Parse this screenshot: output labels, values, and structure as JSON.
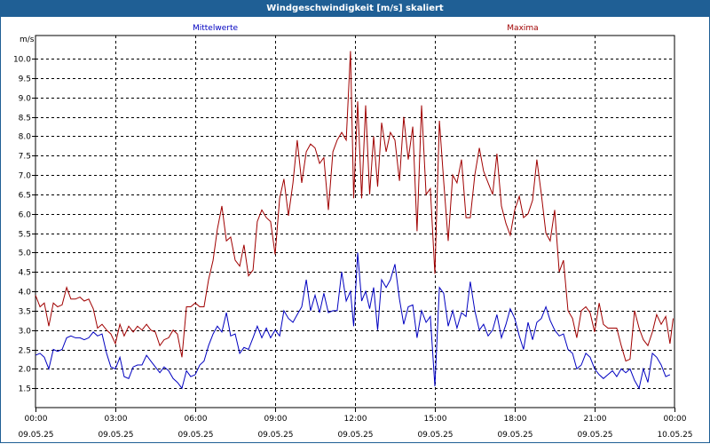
{
  "window": {
    "title": "Windgeschwindigkeit [m/s] skaliert"
  },
  "chart_data": {
    "type": "line",
    "title": "Windgeschwindigkeit [m/s] skaliert",
    "ylabel": "m/s",
    "ylim": [
      1.0,
      10.6
    ],
    "yticks": [
      "1.5",
      "2.0",
      "2.5",
      "3.0",
      "3.5",
      "4.0",
      "4.5",
      "5.0",
      "5.5",
      "6.0",
      "6.5",
      "7.0",
      "7.5",
      "8.0",
      "8.5",
      "9.0",
      "9.5",
      "10.0"
    ],
    "xlim_hours": [
      0,
      24
    ],
    "xticks": [
      {
        "time": "00:00",
        "date": "09.05.25"
      },
      {
        "time": "03:00",
        "date": "09.05.25"
      },
      {
        "time": "06:00",
        "date": "09.05.25"
      },
      {
        "time": "09:00",
        "date": "09.05.25"
      },
      {
        "time": "12:00",
        "date": "09.05.25"
      },
      {
        "time": "15:00",
        "date": "09.05.25"
      },
      {
        "time": "18:00",
        "date": "09.05.25"
      },
      {
        "time": "21:00",
        "date": "09.05.25"
      },
      {
        "time": "00:00",
        "date": "10.05.25"
      }
    ],
    "grid": true,
    "legend_position": "top",
    "series": [
      {
        "name": "Mittelwerte",
        "color": "#0000c0",
        "points": [
          [
            0.0,
            2.35
          ],
          [
            0.17,
            2.4
          ],
          [
            0.33,
            2.3
          ],
          [
            0.5,
            2.0
          ],
          [
            0.67,
            2.5
          ],
          [
            0.83,
            2.45
          ],
          [
            1.0,
            2.5
          ],
          [
            1.17,
            2.8
          ],
          [
            1.33,
            2.85
          ],
          [
            1.5,
            2.8
          ],
          [
            1.67,
            2.8
          ],
          [
            1.83,
            2.75
          ],
          [
            2.0,
            2.8
          ],
          [
            2.17,
            2.95
          ],
          [
            2.33,
            2.85
          ],
          [
            2.5,
            2.9
          ],
          [
            2.67,
            2.4
          ],
          [
            2.83,
            2.05
          ],
          [
            3.0,
            2.0
          ],
          [
            3.17,
            2.3
          ],
          [
            3.33,
            1.8
          ],
          [
            3.5,
            1.75
          ],
          [
            3.67,
            2.05
          ],
          [
            3.83,
            2.1
          ],
          [
            4.0,
            2.1
          ],
          [
            4.17,
            2.35
          ],
          [
            4.33,
            2.2
          ],
          [
            4.5,
            2.05
          ],
          [
            4.67,
            1.9
          ],
          [
            4.83,
            2.05
          ],
          [
            5.0,
            1.95
          ],
          [
            5.17,
            1.75
          ],
          [
            5.33,
            1.65
          ],
          [
            5.5,
            1.5
          ],
          [
            5.67,
            1.95
          ],
          [
            5.83,
            1.8
          ],
          [
            6.0,
            1.85
          ],
          [
            6.17,
            2.1
          ],
          [
            6.33,
            2.2
          ],
          [
            6.5,
            2.6
          ],
          [
            6.67,
            2.9
          ],
          [
            6.83,
            3.1
          ],
          [
            7.0,
            2.95
          ],
          [
            7.17,
            3.45
          ],
          [
            7.33,
            2.85
          ],
          [
            7.5,
            2.9
          ],
          [
            7.67,
            2.4
          ],
          [
            7.83,
            2.55
          ],
          [
            8.0,
            2.5
          ],
          [
            8.17,
            2.8
          ],
          [
            8.33,
            3.1
          ],
          [
            8.5,
            2.8
          ],
          [
            8.67,
            3.05
          ],
          [
            8.83,
            2.8
          ],
          [
            9.0,
            3.0
          ],
          [
            9.17,
            2.85
          ],
          [
            9.33,
            3.5
          ],
          [
            9.5,
            3.3
          ],
          [
            9.67,
            3.2
          ],
          [
            9.83,
            3.4
          ],
          [
            10.0,
            3.6
          ],
          [
            10.17,
            4.3
          ],
          [
            10.33,
            3.5
          ],
          [
            10.5,
            3.9
          ],
          [
            10.67,
            3.45
          ],
          [
            10.83,
            3.95
          ],
          [
            11.0,
            3.45
          ],
          [
            11.17,
            3.5
          ],
          [
            11.33,
            3.5
          ],
          [
            11.5,
            4.5
          ],
          [
            11.67,
            3.75
          ],
          [
            11.83,
            4.0
          ],
          [
            11.95,
            3.1
          ],
          [
            12.1,
            5.0
          ],
          [
            12.25,
            3.75
          ],
          [
            12.4,
            4.0
          ],
          [
            12.55,
            3.55
          ],
          [
            12.7,
            4.1
          ],
          [
            12.85,
            3.0
          ],
          [
            13.0,
            4.3
          ],
          [
            13.17,
            4.1
          ],
          [
            13.33,
            4.3
          ],
          [
            13.5,
            4.7
          ],
          [
            13.67,
            3.8
          ],
          [
            13.83,
            3.15
          ],
          [
            14.0,
            3.6
          ],
          [
            14.17,
            3.65
          ],
          [
            14.33,
            2.8
          ],
          [
            14.5,
            3.5
          ],
          [
            14.67,
            3.2
          ],
          [
            14.83,
            3.35
          ],
          [
            15.0,
            1.55
          ],
          [
            15.17,
            4.1
          ],
          [
            15.33,
            3.95
          ],
          [
            15.5,
            3.1
          ],
          [
            15.67,
            3.5
          ],
          [
            15.83,
            3.05
          ],
          [
            16.0,
            3.45
          ],
          [
            16.17,
            3.35
          ],
          [
            16.33,
            4.25
          ],
          [
            16.5,
            3.5
          ],
          [
            16.67,
            3.0
          ],
          [
            16.83,
            3.15
          ],
          [
            17.0,
            2.85
          ],
          [
            17.17,
            3.0
          ],
          [
            17.33,
            3.4
          ],
          [
            17.5,
            2.8
          ],
          [
            17.67,
            3.15
          ],
          [
            17.83,
            3.55
          ],
          [
            18.0,
            3.3
          ],
          [
            18.17,
            2.85
          ],
          [
            18.33,
            2.5
          ],
          [
            18.5,
            3.2
          ],
          [
            18.67,
            2.75
          ],
          [
            18.83,
            3.2
          ],
          [
            19.0,
            3.3
          ],
          [
            19.17,
            3.6
          ],
          [
            19.33,
            3.25
          ],
          [
            19.5,
            3.0
          ],
          [
            19.67,
            2.85
          ],
          [
            19.83,
            2.9
          ],
          [
            20.0,
            2.5
          ],
          [
            20.17,
            2.4
          ],
          [
            20.33,
            2.0
          ],
          [
            20.5,
            2.1
          ],
          [
            20.67,
            2.4
          ],
          [
            20.83,
            2.3
          ],
          [
            21.0,
            2.0
          ],
          [
            21.17,
            1.85
          ],
          [
            21.33,
            1.75
          ],
          [
            21.5,
            1.85
          ],
          [
            21.67,
            1.95
          ],
          [
            21.83,
            1.8
          ],
          [
            22.0,
            2.0
          ],
          [
            22.17,
            1.9
          ],
          [
            22.33,
            2.0
          ],
          [
            22.5,
            1.7
          ],
          [
            22.67,
            1.5
          ],
          [
            22.83,
            2.0
          ],
          [
            23.0,
            1.65
          ],
          [
            23.17,
            2.4
          ],
          [
            23.33,
            2.3
          ],
          [
            23.5,
            2.1
          ],
          [
            23.67,
            1.8
          ],
          [
            23.83,
            1.85
          ]
        ]
      },
      {
        "name": "Maxima",
        "color": "#a00000",
        "points": [
          [
            0.0,
            3.9
          ],
          [
            0.17,
            3.6
          ],
          [
            0.33,
            3.7
          ],
          [
            0.5,
            3.1
          ],
          [
            0.67,
            3.7
          ],
          [
            0.83,
            3.6
          ],
          [
            1.0,
            3.65
          ],
          [
            1.17,
            4.1
          ],
          [
            1.33,
            3.8
          ],
          [
            1.5,
            3.8
          ],
          [
            1.67,
            3.85
          ],
          [
            1.83,
            3.75
          ],
          [
            2.0,
            3.8
          ],
          [
            2.17,
            3.55
          ],
          [
            2.33,
            3.05
          ],
          [
            2.5,
            3.15
          ],
          [
            2.67,
            3.0
          ],
          [
            2.83,
            2.9
          ],
          [
            3.0,
            2.65
          ],
          [
            3.17,
            3.15
          ],
          [
            3.33,
            2.85
          ],
          [
            3.5,
            3.1
          ],
          [
            3.67,
            2.95
          ],
          [
            3.83,
            3.1
          ],
          [
            4.0,
            3.0
          ],
          [
            4.17,
            3.15
          ],
          [
            4.33,
            3.0
          ],
          [
            4.5,
            2.95
          ],
          [
            4.67,
            2.6
          ],
          [
            4.83,
            2.75
          ],
          [
            5.0,
            2.8
          ],
          [
            5.17,
            3.0
          ],
          [
            5.33,
            2.9
          ],
          [
            5.5,
            2.3
          ],
          [
            5.67,
            3.6
          ],
          [
            5.83,
            3.6
          ],
          [
            6.0,
            3.7
          ],
          [
            6.17,
            3.6
          ],
          [
            6.33,
            3.6
          ],
          [
            6.5,
            4.3
          ],
          [
            6.67,
            4.8
          ],
          [
            6.83,
            5.6
          ],
          [
            7.0,
            6.2
          ],
          [
            7.17,
            5.3
          ],
          [
            7.33,
            5.4
          ],
          [
            7.5,
            4.8
          ],
          [
            7.67,
            4.65
          ],
          [
            7.83,
            5.2
          ],
          [
            8.0,
            4.4
          ],
          [
            8.17,
            4.55
          ],
          [
            8.33,
            5.8
          ],
          [
            8.5,
            6.1
          ],
          [
            8.67,
            5.9
          ],
          [
            8.83,
            5.8
          ],
          [
            9.0,
            4.95
          ],
          [
            9.17,
            6.4
          ],
          [
            9.33,
            6.9
          ],
          [
            9.5,
            5.95
          ],
          [
            9.67,
            6.8
          ],
          [
            9.83,
            7.9
          ],
          [
            10.0,
            6.8
          ],
          [
            10.17,
            7.6
          ],
          [
            10.33,
            7.8
          ],
          [
            10.5,
            7.7
          ],
          [
            10.67,
            7.3
          ],
          [
            10.83,
            7.45
          ],
          [
            11.0,
            6.1
          ],
          [
            11.17,
            7.6
          ],
          [
            11.33,
            7.9
          ],
          [
            11.5,
            8.1
          ],
          [
            11.67,
            7.9
          ],
          [
            11.83,
            10.2
          ],
          [
            11.95,
            6.4
          ],
          [
            12.1,
            8.9
          ],
          [
            12.25,
            6.4
          ],
          [
            12.4,
            8.8
          ],
          [
            12.55,
            6.5
          ],
          [
            12.7,
            8.0
          ],
          [
            12.85,
            6.7
          ],
          [
            13.0,
            8.35
          ],
          [
            13.17,
            7.6
          ],
          [
            13.33,
            8.1
          ],
          [
            13.5,
            7.9
          ],
          [
            13.67,
            6.85
          ],
          [
            13.83,
            8.5
          ],
          [
            14.0,
            7.4
          ],
          [
            14.17,
            8.25
          ],
          [
            14.33,
            5.55
          ],
          [
            14.5,
            8.8
          ],
          [
            14.67,
            6.5
          ],
          [
            14.83,
            6.65
          ],
          [
            15.0,
            4.45
          ],
          [
            15.17,
            8.4
          ],
          [
            15.33,
            6.85
          ],
          [
            15.5,
            5.3
          ],
          [
            15.67,
            7.0
          ],
          [
            15.83,
            6.8
          ],
          [
            16.0,
            7.4
          ],
          [
            16.17,
            5.9
          ],
          [
            16.33,
            5.9
          ],
          [
            16.5,
            7.0
          ],
          [
            16.67,
            7.7
          ],
          [
            16.83,
            7.1
          ],
          [
            17.0,
            6.8
          ],
          [
            17.17,
            6.5
          ],
          [
            17.33,
            7.55
          ],
          [
            17.5,
            6.2
          ],
          [
            17.67,
            5.75
          ],
          [
            17.83,
            5.45
          ],
          [
            18.0,
            6.1
          ],
          [
            18.17,
            6.45
          ],
          [
            18.33,
            5.9
          ],
          [
            18.5,
            6.0
          ],
          [
            18.67,
            6.35
          ],
          [
            18.83,
            7.4
          ],
          [
            19.0,
            6.5
          ],
          [
            19.17,
            5.5
          ],
          [
            19.33,
            5.3
          ],
          [
            19.5,
            6.1
          ],
          [
            19.67,
            4.5
          ],
          [
            19.83,
            4.8
          ],
          [
            20.0,
            3.5
          ],
          [
            20.17,
            3.3
          ],
          [
            20.33,
            2.8
          ],
          [
            20.5,
            3.5
          ],
          [
            20.67,
            3.6
          ],
          [
            20.83,
            3.45
          ],
          [
            21.0,
            2.95
          ],
          [
            21.17,
            3.7
          ],
          [
            21.33,
            3.15
          ],
          [
            21.5,
            3.05
          ],
          [
            21.67,
            3.05
          ],
          [
            21.83,
            3.05
          ],
          [
            22.0,
            2.6
          ],
          [
            22.17,
            2.2
          ],
          [
            22.33,
            2.25
          ],
          [
            22.5,
            3.5
          ],
          [
            22.67,
            3.05
          ],
          [
            22.83,
            2.75
          ],
          [
            23.0,
            2.6
          ],
          [
            23.17,
            2.95
          ],
          [
            23.33,
            3.4
          ],
          [
            23.5,
            3.15
          ],
          [
            23.67,
            3.35
          ],
          [
            23.83,
            2.65
          ],
          [
            23.95,
            3.3
          ]
        ]
      }
    ]
  }
}
